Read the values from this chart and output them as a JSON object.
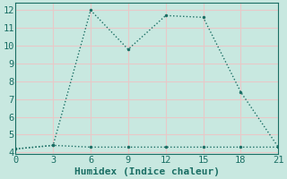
{
  "line1_x": [
    0,
    3,
    6,
    9,
    12,
    15,
    18,
    21
  ],
  "line1_y": [
    4.2,
    4.4,
    12.0,
    9.8,
    11.7,
    11.6,
    7.4,
    4.3
  ],
  "line2_x": [
    0,
    3,
    6,
    9,
    12,
    15,
    18,
    21
  ],
  "line2_y": [
    4.2,
    4.4,
    4.3,
    4.3,
    4.3,
    4.3,
    4.3,
    4.3
  ],
  "line_color": "#1a6e64",
  "bg_color": "#c8e8e0",
  "grid_color": "#e8c8c8",
  "xlabel": "Humidex (Indice chaleur)",
  "xlim": [
    0,
    21
  ],
  "ylim": [
    3.9,
    12.4
  ],
  "xticks": [
    0,
    3,
    6,
    9,
    12,
    15,
    18,
    21
  ],
  "yticks": [
    4,
    5,
    6,
    7,
    8,
    9,
    10,
    11,
    12
  ],
  "font_size": 7.5,
  "label_font_size": 8
}
